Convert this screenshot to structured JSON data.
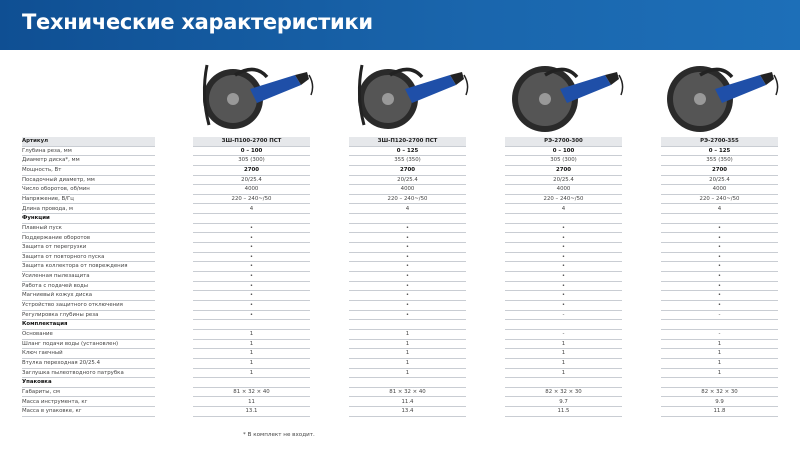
{
  "header": {
    "title": "Технические характеристики",
    "color": "#1a66ad"
  },
  "models": [
    "ЗШ-П100-2700 ПСТ",
    "ЗШ-П120-2700 ПСТ",
    "РЭ-2700-300",
    "РЭ-2700-355"
  ],
  "table": {
    "header_label": "Артикул",
    "rows": [
      {
        "label": "Глубина реза, мм",
        "values": [
          "0 – 100",
          "0 – 125",
          "0 – 100",
          "0 – 125"
        ],
        "bold": true
      },
      {
        "label": "Диаметр диска*, мм",
        "values": [
          "305 (300)",
          "355 (350)",
          "305 (300)",
          "355 (350)"
        ]
      },
      {
        "label": "Мощность, Вт",
        "values": [
          "2700",
          "2700",
          "2700",
          "2700"
        ],
        "bold": true
      },
      {
        "label": "Посадочный диаметр, мм",
        "values": [
          "20/25.4",
          "20/25.4",
          "20/25.4",
          "20/25.4"
        ]
      },
      {
        "label": "Число оборотов, об/мин",
        "values": [
          "4000",
          "4000",
          "4000",
          "4000"
        ]
      },
      {
        "label": "Напряжение, В/Гц",
        "values": [
          "220 – 240~/50",
          "220 – 240~/50",
          "220 – 240~/50",
          "220 – 240~/50"
        ]
      },
      {
        "label": "Длина провода, м",
        "values": [
          "4",
          "4",
          "4",
          "4"
        ]
      },
      {
        "label": "Функции",
        "section": true,
        "values": [
          "",
          "",
          "",
          ""
        ]
      },
      {
        "label": "Плавный пуск",
        "values": [
          "•",
          "•",
          "•",
          "•"
        ]
      },
      {
        "label": "Поддержание оборотов",
        "values": [
          "•",
          "•",
          "•",
          "•"
        ]
      },
      {
        "label": "Защита от перегрузки",
        "values": [
          "•",
          "•",
          "•",
          "•"
        ]
      },
      {
        "label": "Защита от повторного пуска",
        "values": [
          "•",
          "•",
          "•",
          "•"
        ]
      },
      {
        "label": "Защита коллектора от повреждения",
        "values": [
          "•",
          "•",
          "•",
          "•"
        ]
      },
      {
        "label": "Усиленная пылезащита",
        "values": [
          "•",
          "•",
          "•",
          "•"
        ]
      },
      {
        "label": "Работа с подачей воды",
        "values": [
          "•",
          "•",
          "•",
          "•"
        ]
      },
      {
        "label": "Магниевый кожух диска",
        "values": [
          "•",
          "•",
          "•",
          "•"
        ]
      },
      {
        "label": "Устройство защитного отключения",
        "values": [
          "•",
          "•",
          "•",
          "•"
        ]
      },
      {
        "label": "Регулировка глубины реза",
        "values": [
          "•",
          "•",
          "-",
          "-"
        ]
      },
      {
        "label": "Комплектация",
        "section": true,
        "values": [
          "",
          "",
          "",
          ""
        ]
      },
      {
        "label": "Основание",
        "values": [
          "1",
          "1",
          "-",
          "-"
        ]
      },
      {
        "label": "Шланг подачи воды (установлен)",
        "values": [
          "1",
          "1",
          "1",
          "1"
        ]
      },
      {
        "label": "Ключ гаечный",
        "values": [
          "1",
          "1",
          "1",
          "1"
        ]
      },
      {
        "label": "Втулка переходная 20/25.4",
        "values": [
          "1",
          "1",
          "1",
          "1"
        ]
      },
      {
        "label": "Заглушка пылеотводного патрубка",
        "values": [
          "1",
          "1",
          "1",
          "1"
        ]
      },
      {
        "label": "Упаковка",
        "section": true,
        "values": [
          "",
          "",
          "",
          ""
        ]
      },
      {
        "label": "Габариты, см",
        "values": [
          "81 × 32 × 40",
          "81 × 32 × 40",
          "82 × 32 × 30",
          "82 × 32 × 30"
        ]
      },
      {
        "label": "Масса инструмента, кг",
        "values": [
          "11",
          "11.4",
          "9.7",
          "9.9"
        ]
      },
      {
        "label": "Масса в упаковке, кг",
        "values": [
          "13.1",
          "13.4",
          "11.5",
          "11.8"
        ]
      }
    ]
  },
  "footnote": "* В комплект не входит."
}
